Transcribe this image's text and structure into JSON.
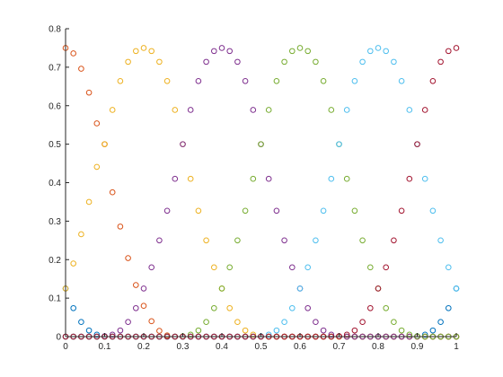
{
  "chart_data": {
    "type": "scatter",
    "title": "",
    "xlabel": "",
    "ylabel": "",
    "xlim": [
      0,
      1
    ],
    "ylim": [
      0,
      0.8
    ],
    "xticks": [
      "0",
      "0.1",
      "0.2",
      "0.3",
      "0.4",
      "0.5",
      "0.6",
      "0.7",
      "0.8",
      "0.9",
      "1"
    ],
    "yticks": [
      "0",
      "0.1",
      "0.2",
      "0.3",
      "0.4",
      "0.5",
      "0.6",
      "0.7",
      "0.8"
    ],
    "grid": false,
    "legend": "none",
    "marker": "open-circle",
    "sample_x": [
      0,
      0.02,
      0.04,
      0.06,
      0.08,
      0.1,
      0.12,
      0.14,
      0.16,
      0.18,
      0.2,
      0.22,
      0.24,
      0.26,
      0.28,
      0.3,
      0.32,
      0.34,
      0.36,
      0.38,
      0.4,
      0.42,
      0.44,
      0.46,
      0.48,
      0.5,
      0.52,
      0.54,
      0.56,
      0.58,
      0.6,
      0.62,
      0.64,
      0.66,
      0.68,
      0.7,
      0.72,
      0.74,
      0.76,
      0.78,
      0.8,
      0.82,
      0.84,
      0.86,
      0.88,
      0.9,
      0.92,
      0.94,
      0.96,
      0.98,
      1
    ],
    "series": [
      {
        "color": "#0072BD",
        "values": [
          0.125,
          0.074,
          0.038,
          0.016,
          0.005,
          0.001,
          0,
          0,
          0,
          0,
          0,
          0,
          0,
          0,
          0,
          0,
          0,
          0,
          0,
          0,
          0,
          0,
          0,
          0,
          0,
          0,
          0,
          0,
          0,
          0,
          0,
          0,
          0,
          0,
          0,
          0,
          0,
          0,
          0,
          0,
          0,
          0,
          0,
          0,
          0,
          0.001,
          0.005,
          0.016,
          0.038,
          0.074,
          0.125
        ]
      },
      {
        "color": "#D95319",
        "values": [
          0.75,
          0.736,
          0.696,
          0.634,
          0.554,
          0.5,
          0.375,
          0.286,
          0.204,
          0.134,
          0.08,
          0.04,
          0.015,
          0.003,
          0,
          0,
          0,
          0,
          0,
          0,
          0,
          0,
          0,
          0,
          0,
          0,
          0,
          0,
          0,
          0,
          0,
          0,
          0,
          0,
          0,
          0,
          0,
          0,
          0,
          0,
          0,
          0,
          0,
          0,
          0,
          0,
          0,
          0,
          0,
          0,
          0
        ]
      },
      {
        "color": "#EDB120",
        "values": [
          0.125,
          0.19,
          0.266,
          0.35,
          0.441,
          0.5,
          0.589,
          0.664,
          0.714,
          0.742,
          0.75,
          0.742,
          0.714,
          0.664,
          0.589,
          0.5,
          0.41,
          0.327,
          0.25,
          0.18,
          0.125,
          0.074,
          0.038,
          0.016,
          0.005,
          0.001,
          0,
          0,
          0,
          0,
          0,
          0,
          0,
          0,
          0,
          0,
          0,
          0,
          0,
          0,
          0,
          0,
          0,
          0,
          0,
          0,
          0,
          0,
          0,
          0,
          0
        ]
      },
      {
        "color": "#7E2F8E",
        "values": [
          0,
          0,
          0,
          0,
          0,
          0.001,
          0.005,
          0.016,
          0.038,
          0.074,
          0.125,
          0.18,
          0.25,
          0.327,
          0.41,
          0.5,
          0.589,
          0.664,
          0.714,
          0.742,
          0.75,
          0.742,
          0.714,
          0.664,
          0.589,
          0.5,
          0.41,
          0.327,
          0.25,
          0.18,
          0.125,
          0.074,
          0.038,
          0.016,
          0.005,
          0.001,
          0,
          0,
          0,
          0,
          0,
          0,
          0,
          0,
          0,
          0,
          0,
          0,
          0,
          0,
          0
        ]
      },
      {
        "color": "#77AC30",
        "values": [
          0,
          0,
          0,
          0,
          0,
          0,
          0,
          0,
          0,
          0,
          0,
          0,
          0,
          0,
          0,
          0.001,
          0.005,
          0.016,
          0.038,
          0.074,
          0.125,
          0.18,
          0.25,
          0.327,
          0.41,
          0.5,
          0.589,
          0.664,
          0.714,
          0.742,
          0.75,
          0.742,
          0.714,
          0.664,
          0.589,
          0.5,
          0.41,
          0.327,
          0.25,
          0.18,
          0.125,
          0.074,
          0.038,
          0.016,
          0.005,
          0.001,
          0,
          0,
          0,
          0,
          0
        ]
      },
      {
        "color": "#4DBEEE",
        "values": [
          0,
          0,
          0,
          0,
          0,
          0,
          0,
          0,
          0,
          0,
          0,
          0,
          0,
          0,
          0,
          0,
          0,
          0,
          0,
          0,
          0,
          0,
          0,
          0,
          0,
          0.001,
          0.005,
          0.016,
          0.038,
          0.074,
          0.125,
          0.18,
          0.25,
          0.327,
          0.41,
          0.5,
          0.589,
          0.664,
          0.714,
          0.742,
          0.75,
          0.742,
          0.714,
          0.664,
          0.589,
          0.5,
          0.41,
          0.327,
          0.25,
          0.18,
          0.125
        ]
      },
      {
        "color": "#A2142F",
        "values": [
          0,
          0,
          0,
          0,
          0,
          0,
          0,
          0,
          0,
          0,
          0,
          0,
          0,
          0,
          0,
          0,
          0,
          0,
          0,
          0,
          0,
          0,
          0,
          0,
          0,
          0,
          0,
          0,
          0,
          0,
          0,
          0,
          0,
          0,
          0,
          0.001,
          0.005,
          0.016,
          0.038,
          0.074,
          0.125,
          0.18,
          0.25,
          0.327,
          0.41,
          0.5,
          0.589,
          0.664,
          0.714,
          0.742,
          0.75
        ]
      }
    ]
  }
}
